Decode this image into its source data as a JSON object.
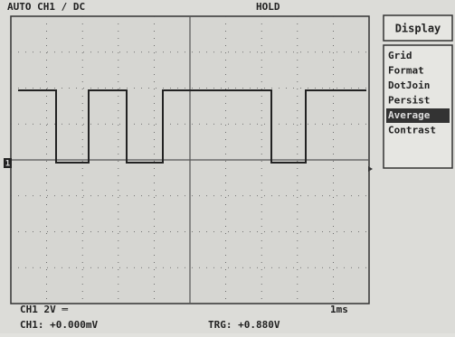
{
  "header": {
    "mode": "AUTO  CH1 / DC",
    "status": "HOLD"
  },
  "channel_marker": "1",
  "menu": {
    "title": "Display",
    "items": [
      "Grid",
      "Format",
      "DotJoin",
      "Persist",
      "Average",
      "Contrast"
    ],
    "selected": "Average"
  },
  "footer": {
    "scale": "CH1  2V ═",
    "timebase": "1ms",
    "ch1_reading": "CH1:  +0.000mV",
    "trigger": "TRG: +0.880V"
  }
}
